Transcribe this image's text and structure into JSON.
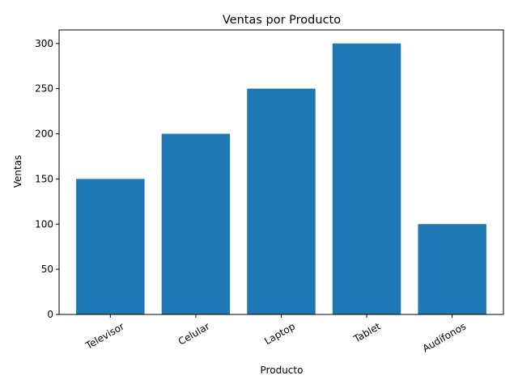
{
  "chart_data": {
    "type": "bar",
    "title": "Ventas por Producto",
    "xlabel": "Producto",
    "ylabel": "Ventas",
    "categories": [
      "Televisor",
      "Celular",
      "Laptop",
      "Tablet",
      "Audífonos"
    ],
    "values": [
      150,
      200,
      250,
      300,
      100
    ],
    "ylim": [
      0,
      315
    ],
    "yticks": [
      0,
      50,
      100,
      150,
      200,
      250,
      300
    ],
    "grid": false,
    "legend": "none",
    "bar_color": "#1f77b4",
    "xtick_rotation": 30
  }
}
